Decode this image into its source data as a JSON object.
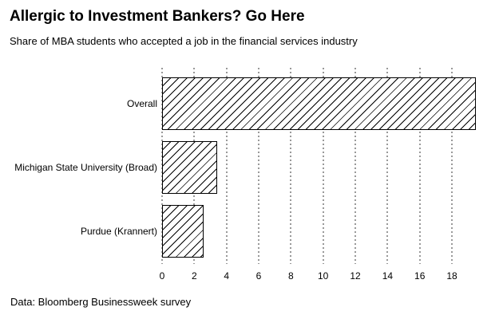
{
  "chart_data": {
    "type": "bar",
    "orientation": "horizontal",
    "title": "Allergic to Investment Bankers? Go Here",
    "subtitle": "Share of MBA students who accepted a job in the financial services industry",
    "source": "Data: Bloomberg Businessweek survey",
    "categories": [
      "Overall",
      "Michigan State University (Broad)",
      "Purdue (Krannert)"
    ],
    "values": [
      19.5,
      3.4,
      2.6
    ],
    "xlabel": "",
    "ylabel": "",
    "xlim": [
      0,
      20.2
    ],
    "xticks": [
      0,
      2,
      4,
      6,
      8,
      10,
      12,
      14,
      16,
      18
    ],
    "grid": "vertical-dotted",
    "legend": "none",
    "bar_fill": "#ffffff",
    "bar_hatch": "diagonal-forward-slash",
    "bar_border_color": "#000000",
    "gridline_color": "#999999",
    "text_color": "#000000",
    "background_color": "#ffffff"
  }
}
